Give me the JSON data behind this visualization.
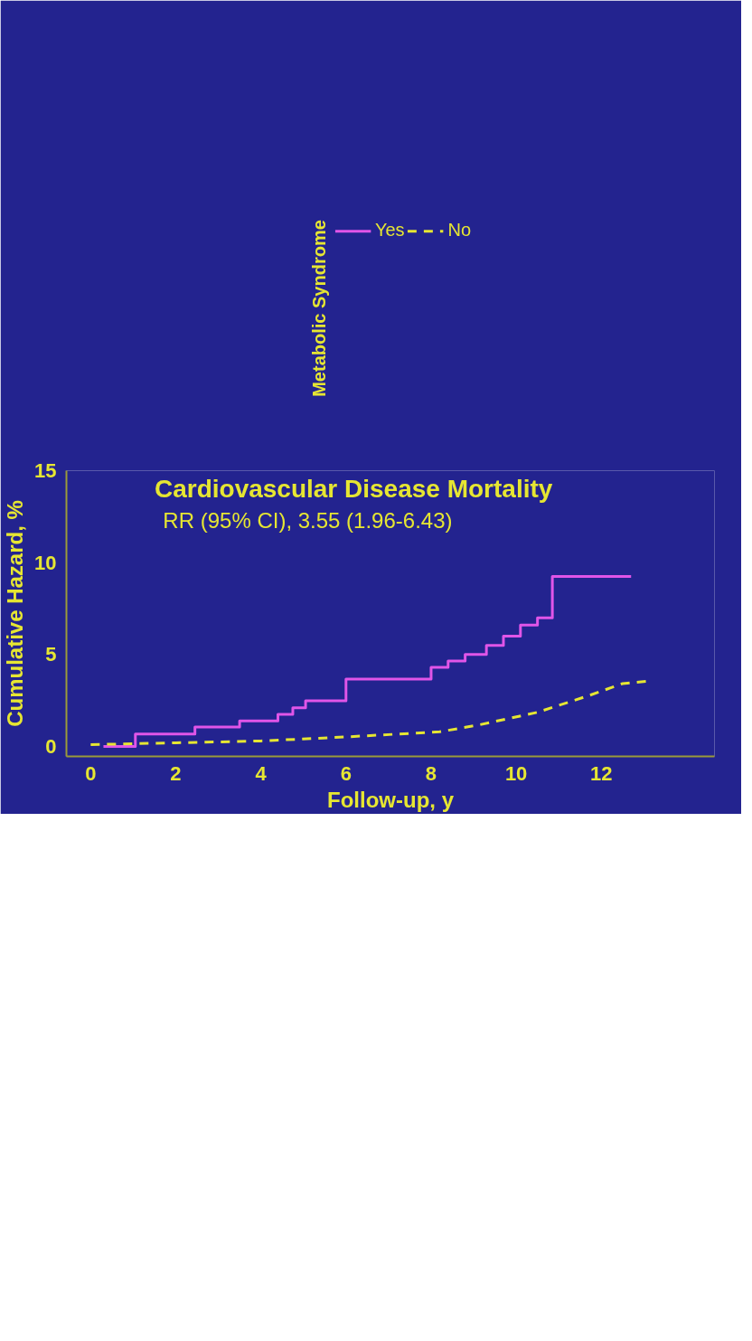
{
  "chart_data": {
    "type": "step",
    "title": "Cardiovascular Disease Mortality",
    "xlabel": "Follow-up, y",
    "ylabel": "Cumulative Hazard, %",
    "legend_title": "Metabolic Syndrome",
    "annotations": [
      "RR (95% CI), 3.55 (1.96-6.43)"
    ],
    "xlim": [
      -0.57,
      14.66
    ],
    "xticks": [
      0,
      2,
      4,
      6,
      8,
      10,
      12
    ],
    "ylim": [
      -0.54,
      15
    ],
    "yticks": [
      0,
      5,
      10,
      15
    ],
    "grid": false,
    "legend": "top",
    "series": [
      {
        "name": "Yes",
        "color": "#e055e8",
        "line_style": "solid",
        "x": [
          0.3,
          1.05,
          2.45,
          3.5,
          4.4,
          4.75,
          5.05,
          6.0,
          8.0,
          8.4,
          8.8,
          9.3,
          9.7,
          10.1,
          10.5,
          10.85,
          12.7
        ],
        "values": [
          0,
          0.68,
          1.06,
          1.39,
          1.75,
          2.1,
          2.48,
          3.66,
          4.3,
          4.65,
          5.0,
          5.5,
          6.0,
          6.6,
          7.0,
          9.25,
          9.25
        ]
      },
      {
        "name": "No",
        "type": "line",
        "color": "#e6e632",
        "line_style": "dashed",
        "x": [
          0,
          2,
          4,
          6,
          8.2,
          9.1,
          10.5,
          11.7,
          12.5,
          13.1
        ],
        "values": [
          0.1,
          0.2,
          0.3,
          0.52,
          0.8,
          1.16,
          1.86,
          2.76,
          3.42,
          3.55
        ]
      }
    ]
  }
}
